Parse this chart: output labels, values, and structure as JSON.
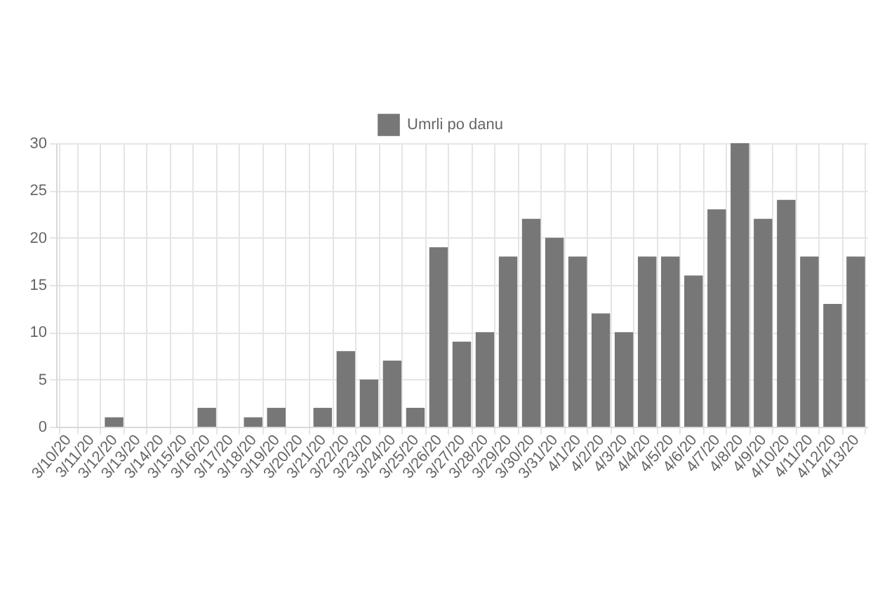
{
  "chart_data": {
    "type": "bar",
    "categories": [
      "3/10/20",
      "3/11/20",
      "3/12/20",
      "3/13/20",
      "3/14/20",
      "3/15/20",
      "3/16/20",
      "3/17/20",
      "3/18/20",
      "3/19/20",
      "3/20/20",
      "3/21/20",
      "3/22/20",
      "3/23/20",
      "3/24/20",
      "3/25/20",
      "3/26/20",
      "3/27/20",
      "3/28/20",
      "3/29/20",
      "3/30/20",
      "3/31/20",
      "4/1/20",
      "4/2/20",
      "4/3/20",
      "4/4/20",
      "4/5/20",
      "4/6/20",
      "4/7/20",
      "4/8/20",
      "4/9/20",
      "4/10/20",
      "4/11/20",
      "4/12/20",
      "4/13/20"
    ],
    "series": [
      {
        "name": "Umrli po danu",
        "color": "#777777",
        "values": [
          0,
          0,
          1,
          0,
          0,
          0,
          2,
          0,
          1,
          2,
          0,
          2,
          8,
          5,
          7,
          2,
          19,
          9,
          10,
          18,
          22,
          20,
          18,
          12,
          10,
          18,
          18,
          16,
          23,
          30,
          22,
          24,
          18,
          13,
          18
        ]
      }
    ],
    "ylim": [
      0,
      30
    ],
    "yticks": [
      0,
      5,
      10,
      15,
      20,
      25,
      30
    ],
    "grid": true,
    "legend": "top"
  }
}
